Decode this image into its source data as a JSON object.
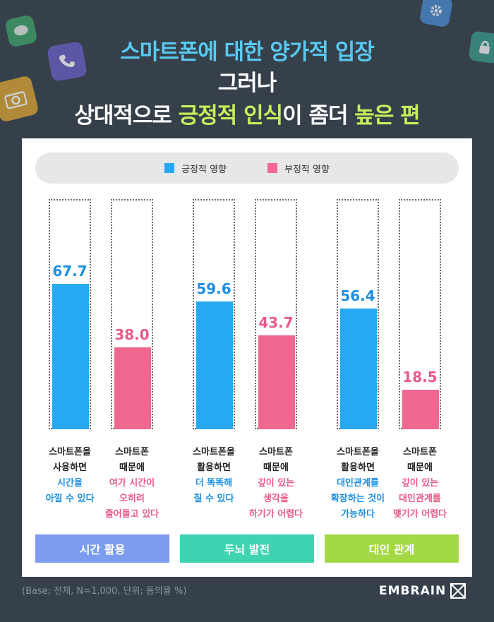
{
  "title": {
    "line1": "스마트폰에 대한 양가적 입장",
    "line2": "그러나",
    "line3_part1": "상대적으로 ",
    "line3_hl1": "긍정적 인식",
    "line3_part2": "이 좀더 ",
    "line3_hl2": "높은 편"
  },
  "colors": {
    "background": "#35404b",
    "positive": "#27a9f1",
    "negative": "#f06890",
    "positive_text": "#1c8fe0",
    "negative_text": "#e85a85",
    "title_blue": "#59c9f1",
    "title_green": "#c7ef5a",
    "cat_time": "#7b9cef",
    "cat_brain": "#3fd3b1",
    "cat_relation": "#a3d944"
  },
  "icons": [
    "message-icon",
    "phone-icon",
    "camera-icon",
    "gear-icon",
    "lock-icon"
  ],
  "chart_data": {
    "type": "bar",
    "ylim": [
      0,
      100
    ],
    "legend": {
      "position": "top-center"
    },
    "series": [
      {
        "name": "긍정적 영향",
        "color": "#27a9f1"
      },
      {
        "name": "부정적 영향",
        "color": "#f06890"
      }
    ],
    "bars": [
      {
        "series": "긍정적 영향",
        "value": 67.7,
        "label": "67.7",
        "group": 0,
        "caption": [
          "스마트폰을",
          "사용하면",
          "시간을",
          "아낄 수 있다"
        ],
        "hl_from": 2
      },
      {
        "series": "부정적 영향",
        "value": 38.0,
        "label": "38.0",
        "group": 0,
        "caption": [
          "스마트폰",
          "때문에",
          "여가 시간이",
          "오히려",
          "줄어들고 있다"
        ],
        "hl_from": 2
      },
      {
        "series": "긍정적 영향",
        "value": 59.6,
        "label": "59.6",
        "group": 1,
        "caption": [
          "스마트폰을",
          "활용하면",
          "더 똑똑해",
          "질 수 있다"
        ],
        "hl_from": 2
      },
      {
        "series": "부정적 영향",
        "value": 43.7,
        "label": "43.7",
        "group": 1,
        "caption": [
          "스마트폰",
          "때문에",
          "깊이 있는",
          "생각을",
          "하기가 어렵다"
        ],
        "hl_from": 2
      },
      {
        "series": "긍정적 영향",
        "value": 56.4,
        "label": "56.4",
        "group": 2,
        "caption": [
          "스마트폰을",
          "활용하면",
          "대인관계를",
          "확장하는 것이",
          "가능하다"
        ],
        "hl_from": 2
      },
      {
        "series": "부정적 영향",
        "value": 18.5,
        "label": "18.5",
        "group": 2,
        "caption": [
          "스마트폰",
          "때문에",
          "깊이 있는",
          "대인관계를",
          "맺기가 어렵다"
        ],
        "hl_from": 2
      }
    ],
    "categories": [
      "시간 활용",
      "두뇌 발전",
      "대인 관계"
    ]
  },
  "footer": {
    "base_note": "(Base; 전체, N=1,000, 단위; 동의율 %)",
    "brand": "EMBRAIN"
  }
}
